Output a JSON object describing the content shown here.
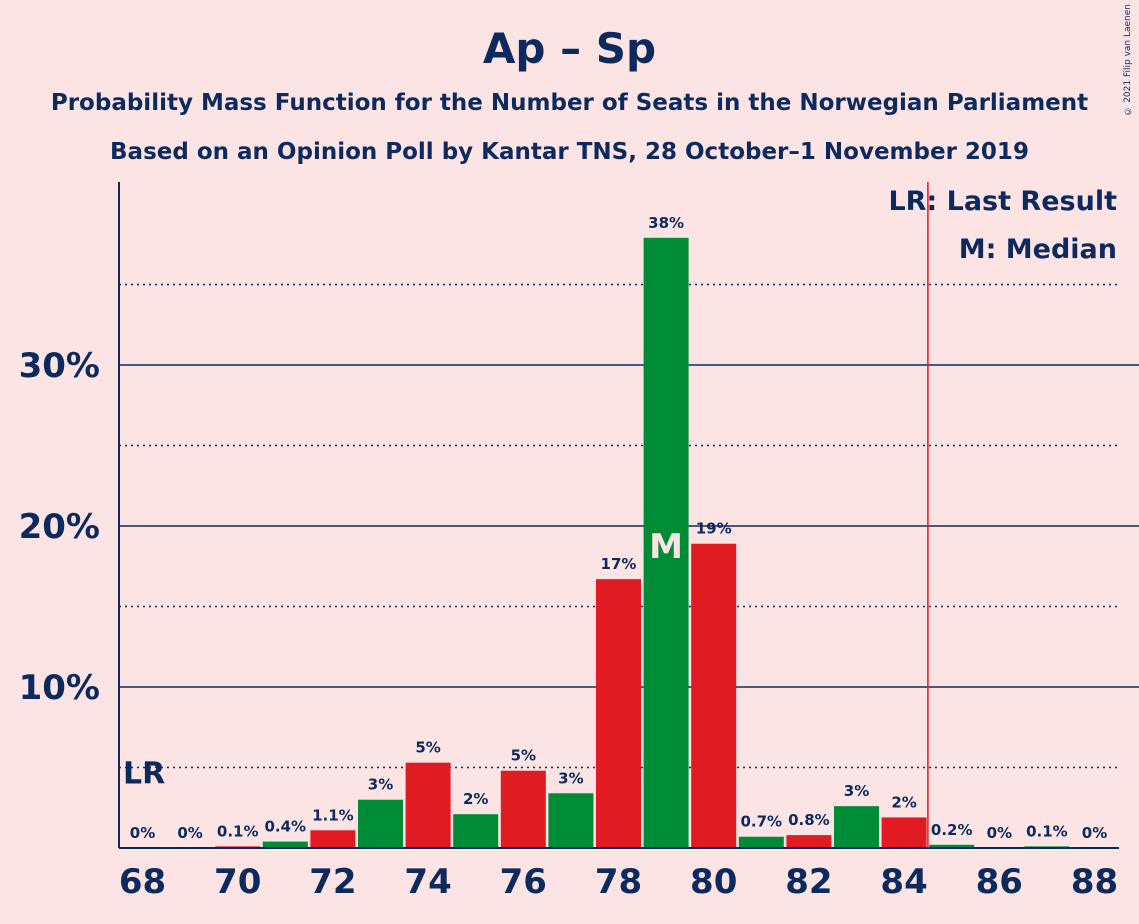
{
  "copyright": "© 2021 Filip van Laenen",
  "chart_data": {
    "type": "bar",
    "title": "Ap – Sp",
    "subtitle": [
      "Probability Mass Function for the Number of Seats in the Norwegian Parliament",
      "Based on an Opinion Poll by Kantar TNS, 28 October–1 November 2019"
    ],
    "xlabel": "",
    "ylabel": "",
    "x": [
      68,
      69,
      70,
      71,
      72,
      73,
      74,
      75,
      76,
      77,
      78,
      79,
      80,
      81,
      82,
      83,
      84,
      85,
      86,
      87,
      88
    ],
    "values": [
      0,
      0,
      0.1,
      0.4,
      1.1,
      3.0,
      5.3,
      2.1,
      4.8,
      3.4,
      16.7,
      37.9,
      18.9,
      0.7,
      0.8,
      2.6,
      1.9,
      0.2,
      0,
      0.1,
      0
    ],
    "data_labels": [
      "0%",
      "0%",
      "0.1%",
      "0.4%",
      "1.1%",
      "3%",
      "5%",
      "2%",
      "5%",
      "3%",
      "17%",
      "38%",
      "19%",
      "0.7%",
      "0.8%",
      "3%",
      "2%",
      "0.2%",
      "0%",
      "0.1%",
      "0%"
    ],
    "xticks": [
      "68",
      "70",
      "72",
      "74",
      "76",
      "78",
      "80",
      "82",
      "84",
      "86",
      "88"
    ],
    "yticks": [
      {
        "value": 10,
        "label": "10%"
      },
      {
        "value": 20,
        "label": "20%"
      },
      {
        "value": 30,
        "label": "30%"
      }
    ],
    "ylim": [
      0,
      41
    ],
    "minor_grid": [
      5,
      15,
      25,
      35
    ],
    "colors": {
      "red": "#E11B22",
      "green": "#008C37",
      "axis": "#0C2A5E",
      "lr_line": "#E11B22",
      "background": "#FDE4E4"
    },
    "last_result": {
      "x": 84.5,
      "label": "LR"
    },
    "median": {
      "x": 79,
      "label": "M"
    },
    "legend": [
      "LR: Last Result",
      "M: Median"
    ],
    "legend_position": "top-right"
  }
}
